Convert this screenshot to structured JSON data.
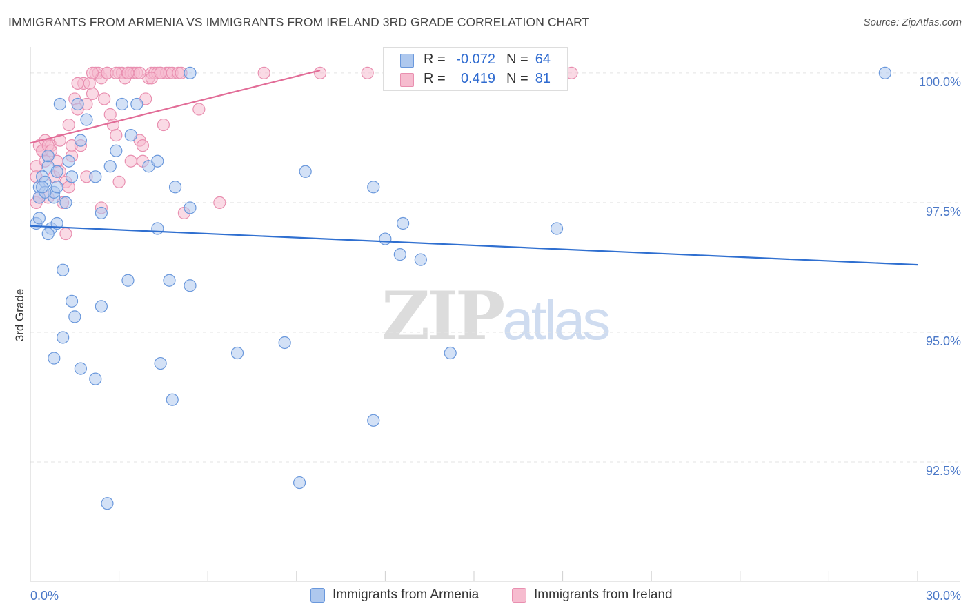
{
  "title": "IMMIGRANTS FROM ARMENIA VS IMMIGRANTS FROM IRELAND 3RD GRADE CORRELATION CHART",
  "source": "Source: ZipAtlas.com",
  "watermark": {
    "zip": "ZIP",
    "atlas": "atlas"
  },
  "legend": {
    "armenia": {
      "r_label": "R =",
      "r_value": "-0.072",
      "n_label": "N =",
      "n_value": "64"
    },
    "ireland": {
      "r_label": "R =",
      "r_value": "0.419",
      "n_label": "N =",
      "n_value": "81"
    }
  },
  "colors": {
    "armenia_fill": "#aec8ee",
    "armenia_stroke": "#6a98dc",
    "armenia_line": "#2f6fd0",
    "ireland_fill": "#f6bccf",
    "ireland_stroke": "#e98fb0",
    "ireland_line": "#e26c97",
    "grid": "#e3e3e3",
    "tick_text": "#4a78c8"
  },
  "chart_data": {
    "type": "scatter",
    "title": "IMMIGRANTS FROM ARMENIA VS IMMIGRANTS FROM IRELAND 3RD GRADE CORRELATION CHART",
    "xlabel": "",
    "ylabel": "3rd Grade",
    "xlim": [
      0,
      30
    ],
    "ylim": [
      90.2,
      100.45
    ],
    "x_tick_labels": [
      "0.0%",
      "30.0%"
    ],
    "y_ticks": [
      {
        "value": 100.0,
        "label": "100.0%"
      },
      {
        "value": 97.5,
        "label": "97.5%"
      },
      {
        "value": 95.0,
        "label": "95.0%"
      },
      {
        "value": 92.5,
        "label": "92.5%"
      }
    ],
    "series": [
      {
        "name": "Immigrants from Armenia",
        "trend": {
          "x": [
            0,
            30
          ],
          "y": [
            97.05,
            96.3
          ]
        },
        "points": [
          [
            0.2,
            97.1
          ],
          [
            0.3,
            97.8
          ],
          [
            0.3,
            97.6
          ],
          [
            0.4,
            98.0
          ],
          [
            0.5,
            97.9
          ],
          [
            0.6,
            98.2
          ],
          [
            0.6,
            98.4
          ],
          [
            0.7,
            97.0
          ],
          [
            0.8,
            97.6
          ],
          [
            0.8,
            97.7
          ],
          [
            0.9,
            98.1
          ],
          [
            0.9,
            97.1
          ],
          [
            1.0,
            99.4
          ],
          [
            1.2,
            97.5
          ],
          [
            1.3,
            98.3
          ],
          [
            1.4,
            98.0
          ],
          [
            1.6,
            99.4
          ],
          [
            1.7,
            98.7
          ],
          [
            1.9,
            99.1
          ],
          [
            2.2,
            98.0
          ],
          [
            2.4,
            97.3
          ],
          [
            2.7,
            98.2
          ],
          [
            2.9,
            98.5
          ],
          [
            3.1,
            99.4
          ],
          [
            3.4,
            98.8
          ],
          [
            3.6,
            99.4
          ],
          [
            4.0,
            98.2
          ],
          [
            4.3,
            98.3
          ],
          [
            4.9,
            97.8
          ],
          [
            5.4,
            97.4
          ],
          [
            5.4,
            100.0
          ],
          [
            9.3,
            98.1
          ],
          [
            11.6,
            97.8
          ],
          [
            12.0,
            96.8
          ],
          [
            12.5,
            96.5
          ],
          [
            12.6,
            97.1
          ],
          [
            13.2,
            96.4
          ],
          [
            17.8,
            97.0
          ],
          [
            28.9,
            100.0
          ],
          [
            1.1,
            96.2
          ],
          [
            1.4,
            95.6
          ],
          [
            1.5,
            95.3
          ],
          [
            2.4,
            95.5
          ],
          [
            3.3,
            96.0
          ],
          [
            4.7,
            96.0
          ],
          [
            5.4,
            95.9
          ],
          [
            0.6,
            96.9
          ],
          [
            1.1,
            94.9
          ],
          [
            0.8,
            94.5
          ],
          [
            1.7,
            94.3
          ],
          [
            2.2,
            94.1
          ],
          [
            4.4,
            94.4
          ],
          [
            4.8,
            93.7
          ],
          [
            7.0,
            94.6
          ],
          [
            8.6,
            94.8
          ],
          [
            14.2,
            94.6
          ],
          [
            11.6,
            93.3
          ],
          [
            9.1,
            92.1
          ],
          [
            2.6,
            91.7
          ],
          [
            0.5,
            97.7
          ],
          [
            0.4,
            97.8
          ],
          [
            4.3,
            97.0
          ],
          [
            0.3,
            97.2
          ],
          [
            0.9,
            97.8
          ]
        ]
      },
      {
        "name": "Immigrants from Ireland",
        "trend": {
          "x": [
            0,
            9.8
          ],
          "y": [
            98.65,
            100.05
          ]
        },
        "points": [
          [
            0.2,
            98.2
          ],
          [
            0.3,
            98.6
          ],
          [
            0.4,
            98.5
          ],
          [
            0.5,
            98.7
          ],
          [
            0.6,
            98.4
          ],
          [
            0.7,
            98.6
          ],
          [
            0.8,
            98.0
          ],
          [
            0.9,
            98.3
          ],
          [
            1.0,
            98.7
          ],
          [
            1.0,
            98.1
          ],
          [
            1.1,
            97.5
          ],
          [
            1.2,
            97.9
          ],
          [
            1.3,
            97.8
          ],
          [
            1.4,
            98.6
          ],
          [
            1.5,
            99.5
          ],
          [
            1.6,
            99.3
          ],
          [
            1.7,
            98.6
          ],
          [
            1.8,
            99.8
          ],
          [
            1.9,
            99.4
          ],
          [
            2.0,
            99.8
          ],
          [
            2.1,
            99.6
          ],
          [
            2.2,
            100.0
          ],
          [
            2.3,
            100.0
          ],
          [
            2.4,
            99.9
          ],
          [
            2.5,
            99.5
          ],
          [
            2.6,
            100.0
          ],
          [
            2.7,
            99.2
          ],
          [
            2.8,
            99.0
          ],
          [
            2.9,
            98.8
          ],
          [
            3.0,
            100.0
          ],
          [
            3.1,
            100.0
          ],
          [
            3.2,
            99.9
          ],
          [
            3.3,
            100.0
          ],
          [
            3.4,
            100.0
          ],
          [
            3.5,
            100.0
          ],
          [
            3.6,
            100.0
          ],
          [
            3.7,
            98.7
          ],
          [
            3.8,
            98.6
          ],
          [
            3.9,
            99.5
          ],
          [
            4.0,
            99.9
          ],
          [
            4.1,
            100.0
          ],
          [
            4.2,
            100.0
          ],
          [
            4.3,
            100.0
          ],
          [
            4.4,
            100.0
          ],
          [
            4.5,
            99.0
          ],
          [
            4.6,
            100.0
          ],
          [
            4.7,
            100.0
          ],
          [
            4.8,
            100.0
          ],
          [
            5.0,
            100.0
          ],
          [
            5.1,
            100.0
          ],
          [
            5.2,
            97.3
          ],
          [
            5.7,
            99.3
          ],
          [
            6.4,
            97.5
          ],
          [
            7.9,
            100.0
          ],
          [
            9.8,
            100.0
          ],
          [
            11.4,
            100.0
          ],
          [
            18.3,
            100.0
          ],
          [
            0.2,
            97.5
          ],
          [
            0.3,
            97.6
          ],
          [
            0.4,
            98.5
          ],
          [
            1.2,
            96.9
          ],
          [
            1.3,
            99.0
          ],
          [
            1.6,
            99.8
          ],
          [
            2.4,
            97.4
          ],
          [
            3.0,
            97.9
          ],
          [
            3.4,
            98.3
          ],
          [
            3.8,
            98.3
          ],
          [
            4.1,
            99.9
          ],
          [
            0.2,
            98.0
          ],
          [
            0.5,
            98.3
          ],
          [
            0.6,
            98.6
          ],
          [
            0.7,
            98.5
          ],
          [
            1.9,
            98.0
          ],
          [
            2.1,
            100.0
          ],
          [
            2.6,
            100.0
          ],
          [
            2.9,
            100.0
          ],
          [
            3.3,
            100.0
          ],
          [
            3.7,
            100.0
          ],
          [
            4.4,
            100.0
          ],
          [
            1.4,
            98.4
          ],
          [
            0.6,
            97.6
          ]
        ]
      }
    ]
  },
  "bottom_legend": {
    "armenia": "Immigrants from Armenia",
    "ireland": "Immigrants from Ireland"
  }
}
